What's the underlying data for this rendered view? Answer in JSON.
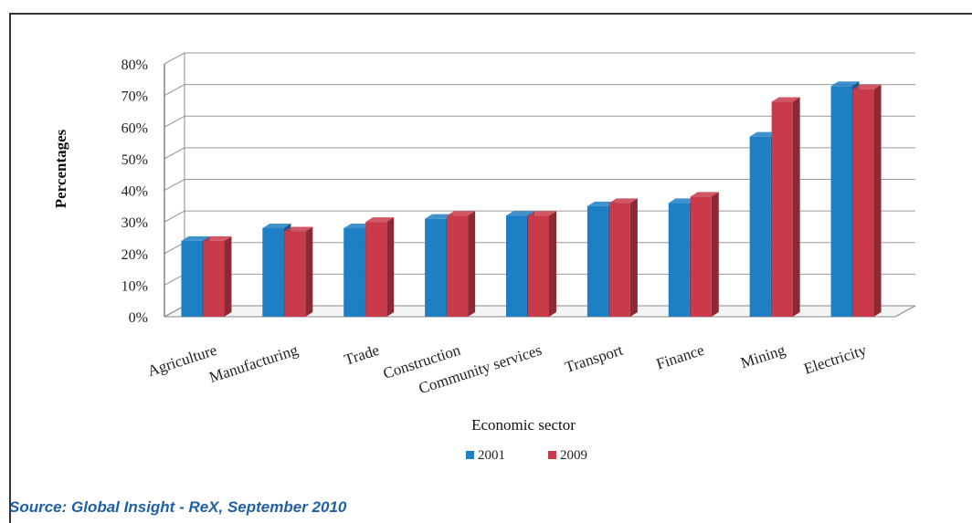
{
  "chart_data": {
    "type": "bar",
    "title": "",
    "xlabel": "Economic sector",
    "ylabel": "Percentages",
    "ylim": [
      0,
      80
    ],
    "yticks": [
      "0%",
      "10%",
      "20%",
      "30%",
      "40%",
      "50%",
      "60%",
      "70%",
      "80%"
    ],
    "grid": true,
    "legend_position": "bottom",
    "categories": [
      "Agriculture",
      "Manufacturing",
      "Trade",
      "Construction",
      "Community services",
      "Transport",
      "Finance",
      "Mining",
      "Electricity"
    ],
    "series": [
      {
        "name": "2001",
        "color": "#1f7fc4",
        "values": [
          24,
          28,
          28,
          31,
          32,
          35,
          36,
          57,
          73
        ]
      },
      {
        "name": "2009",
        "color": "#c93a4a",
        "values": [
          24,
          27,
          30,
          32,
          32,
          36,
          38,
          68,
          72
        ]
      }
    ]
  },
  "source": "Source: Global Insight - ReX, September 2010"
}
